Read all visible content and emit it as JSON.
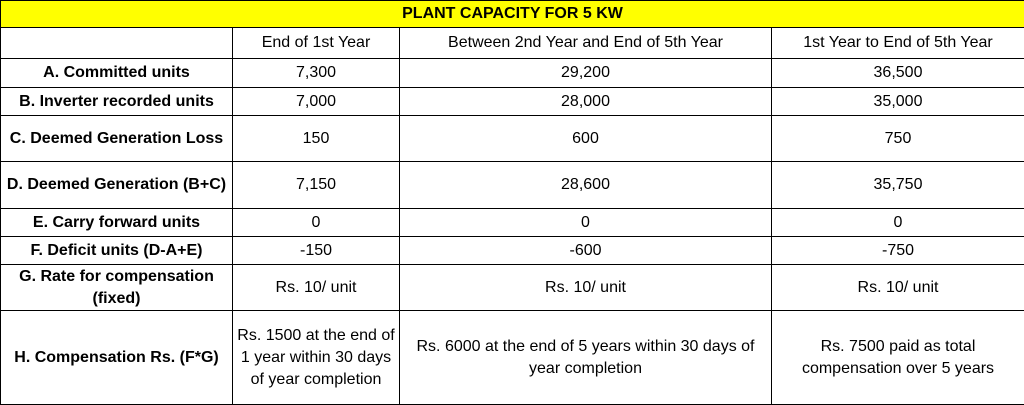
{
  "title": "PLANT CAPACITY FOR 5 KW",
  "headers": [
    "",
    "End of 1st Year",
    "Between 2nd Year and End of 5th Year",
    "1st Year to End of 5th Year"
  ],
  "rows": [
    {
      "label": "A. Committed units",
      "values": [
        "7,300",
        "29,200",
        "36,500"
      ]
    },
    {
      "label": "B. Inverter recorded units",
      "values": [
        "7,000",
        "28,000",
        "35,000"
      ]
    },
    {
      "label": "C. Deemed Generation Loss",
      "values": [
        "150",
        "600",
        "750"
      ]
    },
    {
      "label": "D. Deemed Generation (B+C)",
      "values": [
        "7,150",
        "28,600",
        "35,750"
      ]
    },
    {
      "label": "E. Carry forward units",
      "values": [
        "0",
        "0",
        "0"
      ]
    },
    {
      "label": "F. Deficit units (D-A+E)",
      "values": [
        "-150",
        "-600",
        "-750"
      ]
    },
    {
      "label": "G. Rate for compensation (fixed)",
      "values": [
        "Rs. 10/ unit",
        "Rs. 10/ unit",
        "Rs. 10/ unit"
      ]
    },
    {
      "label": "H. Compensation Rs. (F*G)",
      "values": [
        "Rs. 1500 at the end of 1 year within 30 days of year completion",
        "Rs. 6000 at the end of 5 years within 30 days of year completion",
        "Rs. 7500 paid as total compensation over 5 years"
      ]
    }
  ]
}
